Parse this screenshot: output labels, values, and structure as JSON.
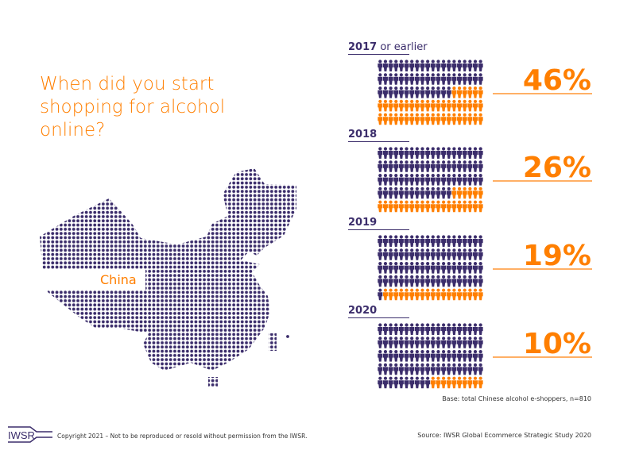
{
  "title": "When did you start shopping for alcohol online?",
  "map_label": "China",
  "colors": {
    "primary": "#3b2d6b",
    "accent": "#ff7f00"
  },
  "chart_data": {
    "type": "pictogram",
    "title": "When did you start shopping for alcohol online?",
    "icons_per_group": 100,
    "columns": 20,
    "categories": [
      {
        "year": "2017",
        "suffix": " or earlier",
        "value": 46,
        "label": "46%"
      },
      {
        "year": "2018",
        "suffix": "",
        "value": 26,
        "label": "26%"
      },
      {
        "year": "2019",
        "suffix": "",
        "value": 19,
        "label": "19%"
      },
      {
        "year": "2020",
        "suffix": "",
        "value": 10,
        "label": "10%"
      }
    ]
  },
  "base_note": "Base: total Chinese alcohol e-shoppers, n=810",
  "footer": {
    "logo": "IWSR",
    "copyright": "Copyright 2021 – Not to be reproduced or resold without permission from the IWSR.",
    "source": "Source: IWSR Global Ecommerce Strategic Study 2020"
  }
}
